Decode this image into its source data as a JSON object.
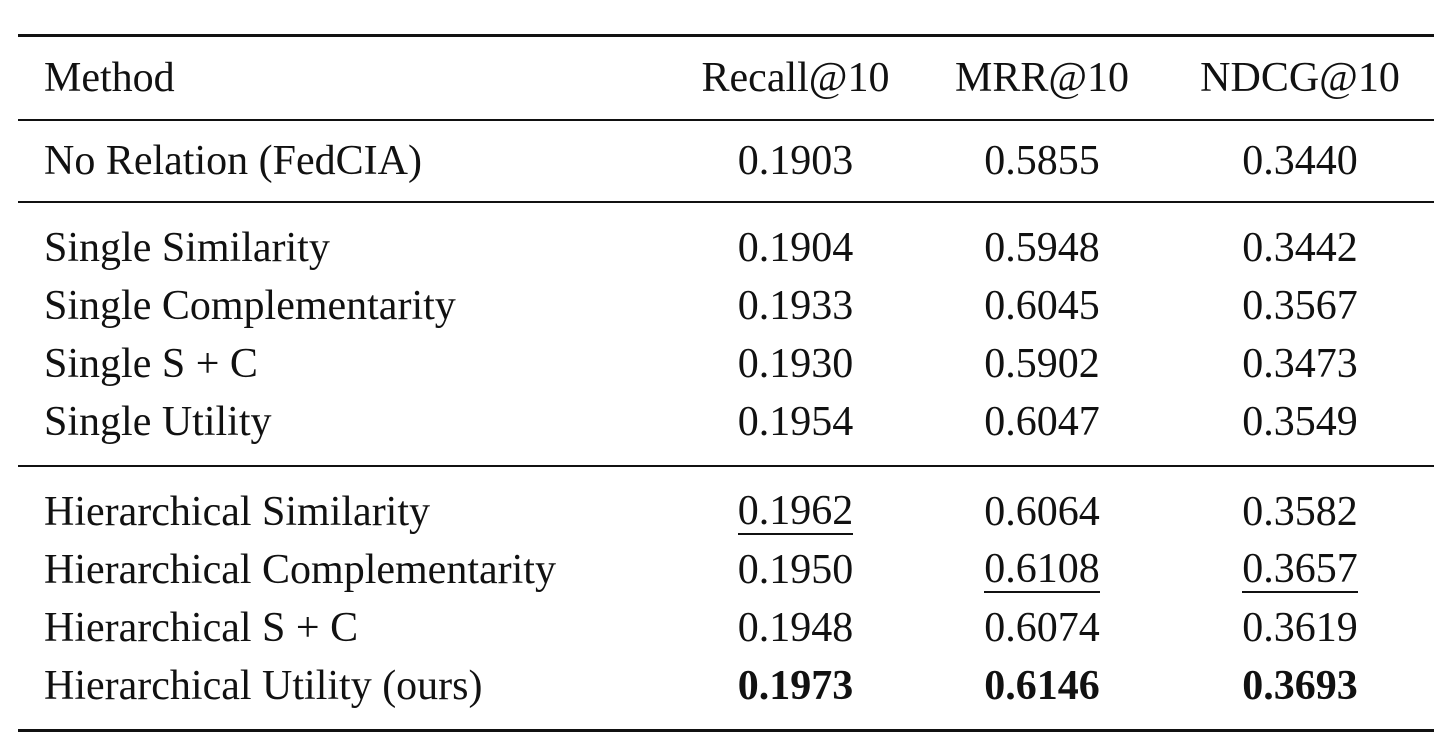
{
  "table": {
    "headers": [
      "Method",
      "Recall@10",
      "MRR@10",
      "NDCG@10"
    ],
    "groups": [
      {
        "rows": [
          {
            "method": "No Relation (FedCIA)",
            "recall": "0.1903",
            "mrr": "0.5855",
            "ndcg": "0.3440"
          }
        ]
      },
      {
        "rows": [
          {
            "method": "Single Similarity",
            "recall": "0.1904",
            "mrr": "0.5948",
            "ndcg": "0.3442"
          },
          {
            "method": "Single Complementarity",
            "recall": "0.1933",
            "mrr": "0.6045",
            "ndcg": "0.3567"
          },
          {
            "method": "Single S + C",
            "recall": "0.1930",
            "mrr": "0.5902",
            "ndcg": "0.3473"
          },
          {
            "method": "Single Utility",
            "recall": "0.1954",
            "mrr": "0.6047",
            "ndcg": "0.3549"
          }
        ]
      },
      {
        "rows": [
          {
            "method": "Hierarchical Similarity",
            "recall": "0.1962",
            "mrr": "0.6064",
            "ndcg": "0.3582"
          },
          {
            "method": "Hierarchical Complementarity",
            "recall": "0.1950",
            "mrr": "0.6108",
            "ndcg": "0.3657"
          },
          {
            "method": "Hierarchical S + C",
            "recall": "0.1948",
            "mrr": "0.6074",
            "ndcg": "0.3619"
          },
          {
            "method": "Hierarchical Utility (ours)",
            "recall": "0.1973",
            "mrr": "0.6146",
            "ndcg": "0.3693"
          }
        ]
      }
    ],
    "emphasis": {
      "best_bold": "Hierarchical Utility (ours)",
      "second_best_underlined": {
        "recall": "Hierarchical Similarity",
        "mrr": "Hierarchical Complementarity",
        "ndcg": "Hierarchical Complementarity"
      }
    }
  }
}
